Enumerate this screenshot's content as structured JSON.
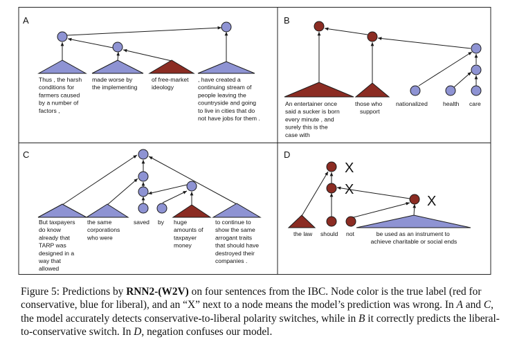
{
  "colors": {
    "conservative": "#8b2c23",
    "liberal": "#8e93d3",
    "stroke": "#1a1a1a"
  },
  "panels": {
    "a": {
      "letter": "A",
      "labels": [
        [
          "Thus , the harsh",
          "conditions for",
          "farmers caused",
          "by a number of",
          "factors ,"
        ],
        [
          "made worse by",
          "the implementing"
        ],
        [
          "of free-market",
          "ideology"
        ],
        [
          ", have created a",
          "continuing stream of",
          "people leaving the",
          "countryside and going",
          "to live in cities that do",
          "not have jobs for them ."
        ]
      ]
    },
    "b": {
      "letter": "B",
      "labels": [
        [
          "An entertainer once",
          "said a sucker is born",
          "every minute , and",
          "surely this is the",
          "case with"
        ],
        [
          "those who",
          "support"
        ],
        [
          "nationalized"
        ],
        [
          "health"
        ],
        [
          "care"
        ]
      ]
    },
    "c": {
      "letter": "C",
      "labels": [
        [
          "But taxpayers",
          "do know",
          "already that",
          "TARP was",
          "designed in a",
          "way that",
          "allowed"
        ],
        [
          "the same",
          "corporations",
          "who were"
        ],
        [
          "saved"
        ],
        [
          "by"
        ],
        [
          "huge",
          "amounts of",
          "taxpayer",
          "money"
        ],
        [
          "to continue to",
          "show the same",
          "arrogant traits",
          "that should have",
          "destroyed their",
          "companies ."
        ]
      ]
    },
    "d": {
      "letter": "D",
      "labels": [
        [
          "the law"
        ],
        [
          "should"
        ],
        [
          "not"
        ],
        [
          "be used as an instrument to",
          "achieve charitable or social ends"
        ]
      ],
      "wrong_mark": "X"
    }
  },
  "caption": {
    "p1": "Figure 5: Predictions by ",
    "model": "RNN2-(W2V)",
    "p2": " on four sentences from the ",
    "dataset": "IBC",
    "p3": ". Node color is the true label (red for conservative, blue for liberal), and an “X” next to a node means the model’s prediction was wrong. In ",
    "a": "A",
    "p4": " and ",
    "c": "C",
    "p5": ", the model accurately detects conservative-to-liberal polarity switches, while in ",
    "b": "B",
    "p6": " it correctly predicts the liberal-to-conservative switch. In ",
    "d": "D",
    "p7": ", negation confuses our model."
  }
}
